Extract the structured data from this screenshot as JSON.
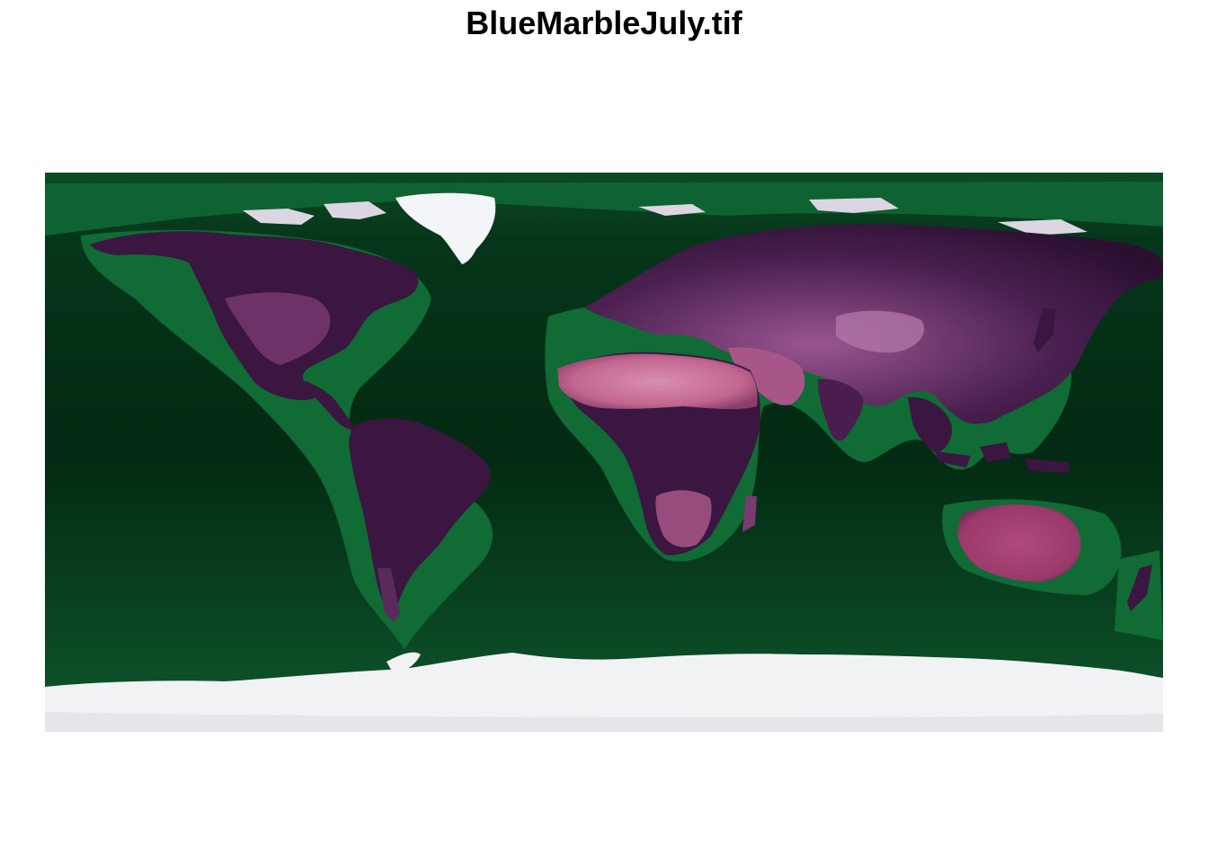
{
  "title": "BlueMarbleJuly.tif",
  "palette": {
    "ocean_deep": "#032a12",
    "ocean_mid": "#0a4a22",
    "shelf": "#106b35",
    "land_dark": "#2a0f30",
    "land_mid": "#5a2a5c",
    "desert": "#c2678f",
    "desert_light": "#d98fb0",
    "ice": "#f1f2f4"
  },
  "map": {
    "source": "raster image",
    "projection": "equirectangular (plate carrée)",
    "axes_visible": false
  }
}
